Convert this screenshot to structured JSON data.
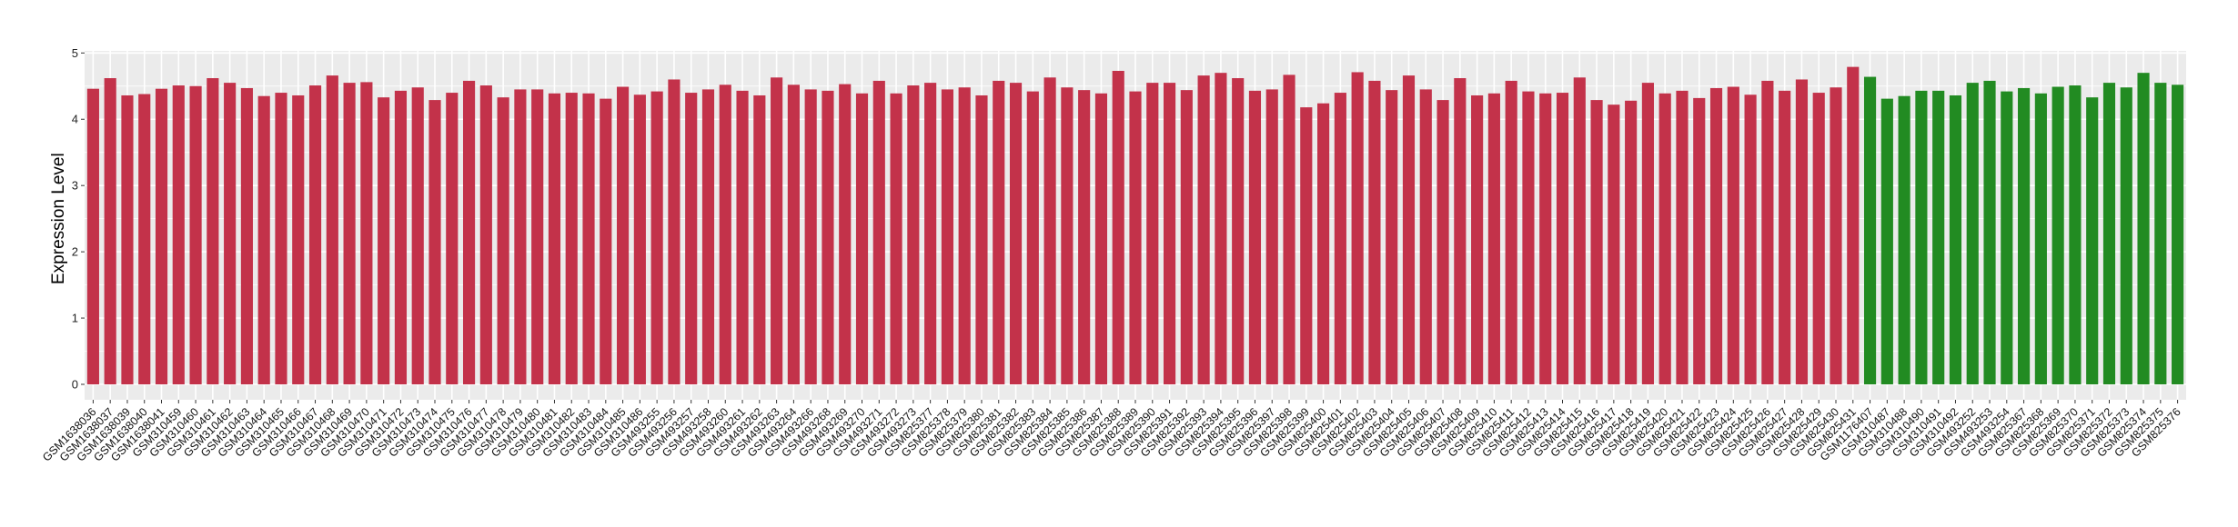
{
  "chart_data": {
    "type": "bar",
    "title": "",
    "xlabel": "",
    "ylabel": "Expression Level",
    "ylim": [
      0,
      5
    ],
    "yticks": [
      0,
      1,
      2,
      3,
      4,
      5
    ],
    "grid": true,
    "colors": {
      "group1": "#C3324A",
      "group2": "#228B22",
      "panel": "#EBEBEB",
      "grid": "#FFFFFF"
    },
    "categories": [
      "GSM1638036",
      "GSM1638037",
      "GSM1638039",
      "GSM1638040",
      "GSM1638041",
      "GSM310459",
      "GSM310460",
      "GSM310461",
      "GSM310462",
      "GSM310463",
      "GSM310464",
      "GSM310465",
      "GSM310466",
      "GSM310467",
      "GSM310468",
      "GSM310469",
      "GSM310470",
      "GSM310471",
      "GSM310472",
      "GSM310473",
      "GSM310474",
      "GSM310475",
      "GSM310476",
      "GSM310477",
      "GSM310478",
      "GSM310479",
      "GSM310480",
      "GSM310481",
      "GSM310482",
      "GSM310483",
      "GSM310484",
      "GSM310485",
      "GSM310486",
      "GSM493255",
      "GSM493256",
      "GSM493257",
      "GSM493258",
      "GSM493260",
      "GSM493261",
      "GSM493262",
      "GSM493263",
      "GSM493264",
      "GSM493266",
      "GSM493268",
      "GSM493269",
      "GSM493270",
      "GSM493271",
      "GSM493272",
      "GSM493273",
      "GSM825377",
      "GSM825378",
      "GSM825379",
      "GSM825380",
      "GSM825381",
      "GSM825382",
      "GSM825383",
      "GSM825384",
      "GSM825385",
      "GSM825386",
      "GSM825387",
      "GSM825388",
      "GSM825389",
      "GSM825390",
      "GSM825391",
      "GSM825392",
      "GSM825393",
      "GSM825394",
      "GSM825395",
      "GSM825396",
      "GSM825397",
      "GSM825398",
      "GSM825399",
      "GSM825400",
      "GSM825401",
      "GSM825402",
      "GSM825403",
      "GSM825404",
      "GSM825405",
      "GSM825406",
      "GSM825407",
      "GSM825408",
      "GSM825409",
      "GSM825410",
      "GSM825411",
      "GSM825412",
      "GSM825413",
      "GSM825414",
      "GSM825415",
      "GSM825416",
      "GSM825417",
      "GSM825418",
      "GSM825419",
      "GSM825420",
      "GSM825421",
      "GSM825422",
      "GSM825423",
      "GSM825424",
      "GSM825425",
      "GSM825426",
      "GSM825427",
      "GSM825428",
      "GSM825429",
      "GSM825430",
      "GSM825431",
      "GSM1176407",
      "GSM310487",
      "GSM310488",
      "GSM310490",
      "GSM310491",
      "GSM310492",
      "GSM493252",
      "GSM493253",
      "GSM493254",
      "GSM825367",
      "GSM825368",
      "GSM825369",
      "GSM825370",
      "GSM825371",
      "GSM825372",
      "GSM825373",
      "GSM825374",
      "GSM825375",
      "GSM825376"
    ],
    "values": [
      4.46,
      4.62,
      4.36,
      4.38,
      4.46,
      4.51,
      4.5,
      4.62,
      4.55,
      4.47,
      4.35,
      4.4,
      4.36,
      4.51,
      4.66,
      4.55,
      4.56,
      4.33,
      4.43,
      4.48,
      4.29,
      4.4,
      4.58,
      4.51,
      4.33,
      4.45,
      4.45,
      4.39,
      4.4,
      4.39,
      4.31,
      4.49,
      4.37,
      4.42,
      4.6,
      4.4,
      4.45,
      4.52,
      4.43,
      4.36,
      4.63,
      4.52,
      4.45,
      4.43,
      4.53,
      4.39,
      4.58,
      4.39,
      4.51,
      4.55,
      4.45,
      4.48,
      4.36,
      4.58,
      4.55,
      4.42,
      4.63,
      4.48,
      4.44,
      4.39,
      4.73,
      4.42,
      4.55,
      4.55,
      4.44,
      4.66,
      4.7,
      4.62,
      4.43,
      4.45,
      4.67,
      4.18,
      4.24,
      4.4,
      4.71,
      4.58,
      4.44,
      4.66,
      4.45,
      4.29,
      4.62,
      4.36,
      4.39,
      4.58,
      4.42,
      4.39,
      4.4,
      4.63,
      4.29,
      4.22,
      4.28,
      4.55,
      4.39,
      4.43,
      4.32,
      4.47,
      4.49,
      4.37,
      4.58,
      4.43,
      4.6,
      4.4,
      4.48,
      4.79,
      4.64,
      4.31,
      4.35,
      4.43,
      4.43,
      4.36,
      4.55,
      4.58,
      4.42,
      4.47,
      4.39,
      4.49,
      4.51,
      4.33,
      4.55,
      4.48,
      4.7,
      4.55,
      4.52
    ],
    "groups": [
      {
        "color_key": "group1",
        "count": 104
      },
      {
        "color_key": "group2",
        "count": 19
      }
    ]
  }
}
